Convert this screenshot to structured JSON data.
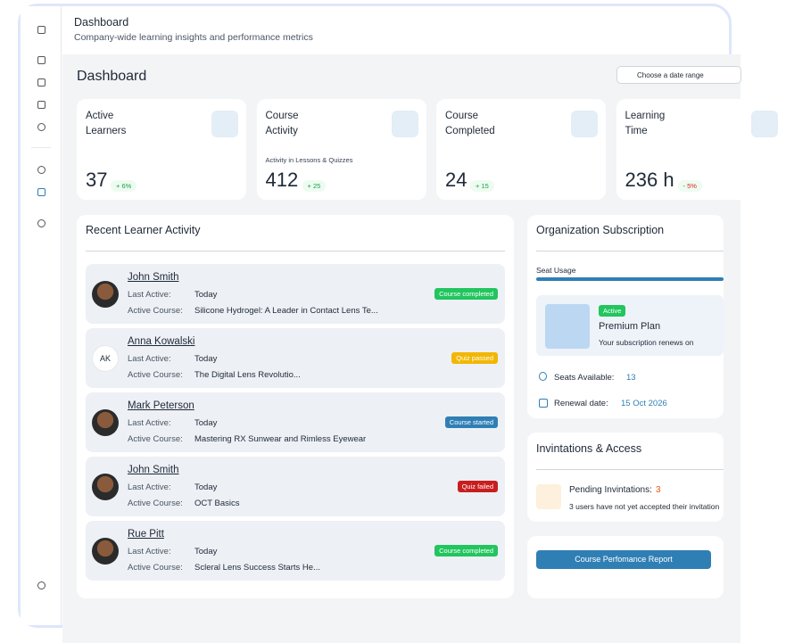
{
  "header": {
    "title": "Dashboard",
    "subtitle": "Company-wide learning insights and performance metrics"
  },
  "page_title": "Dashboard",
  "date_button": "Choose a date range",
  "stats": [
    {
      "label": "Active Learners",
      "value": 37,
      "change": "+ 6%",
      "change_color": "#16a34a"
    },
    {
      "label": "Course Activity",
      "note": "Activity in Lessons & Quizzes",
      "value": 412,
      "change": "+ 25",
      "change_color": "#16a34a"
    },
    {
      "label": "Course Completed",
      "value": 24,
      "change": "+ 15",
      "change_color": "#16a34a"
    },
    {
      "label": "Learning Time",
      "value": "236 h",
      "change": "- 5%",
      "change_color": "#dc2626"
    }
  ],
  "activity": {
    "title": "Recent Learner Activity",
    "last_active_label": "Last Active:",
    "course_label": "Active Course:",
    "items": [
      {
        "name": "John Smith",
        "last_active": "Today",
        "course": "Silicone Hydrogel: A Leader in Contact Lens Te...",
        "status": "Course completed",
        "status_color": "#22c55e"
      },
      {
        "name": "Anna Kowalski",
        "initials": "AK",
        "last_active": "Today",
        "course": "The Digital Lens Revolutio...",
        "status": "Quiz passed",
        "status_color": "#f2b705"
      },
      {
        "name": "Mark Peterson",
        "last_active": "Today",
        "course": "Mastering RX Sunwear and Rimless Eyewear",
        "status": "Course started",
        "status_color": "#2f7fb5"
      },
      {
        "name": "John Smith",
        "last_active": "Today",
        "course": "OCT Basics",
        "status": "Quiz failed",
        "status_color": "#c81e1e"
      },
      {
        "name": "Rue Pitt",
        "last_active": "Today",
        "course": "Scleral Lens Success Starts He...",
        "status": "Course completed",
        "status_color": "#22c55e"
      }
    ]
  },
  "subscription": {
    "title": "Organization Subscription",
    "seat_usage": "Seat Usage",
    "badge": "Active",
    "plan": "Premium Plan",
    "renews": "Your subscription renews on",
    "seats_label": "Seats Available:",
    "seats": 13,
    "renewal_label": "Renewal date:",
    "renewal": "15 Oct 2026"
  },
  "invitations": {
    "title": "Invintations & Access",
    "pending_label": "Pending Invintations:",
    "pending": 3,
    "note": "3 users have not yet accepted their invitation"
  },
  "report_button": "Course Perfomance Report"
}
